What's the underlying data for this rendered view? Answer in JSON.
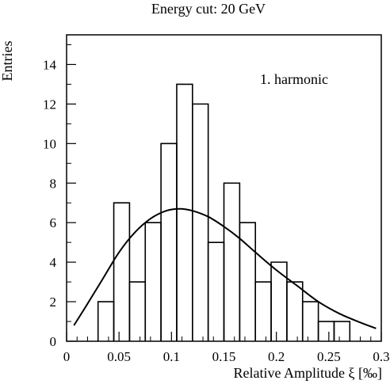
{
  "chart_data": {
    "type": "histogram",
    "title": "Energy cut: 20 GeV",
    "xlabel": "Relative Amplitude ξ [‰]",
    "ylabel": "Entries",
    "annotation": "1. harmonic",
    "xlim": [
      0,
      0.3
    ],
    "ylim": [
      0,
      15.5
    ],
    "xticks": [
      0,
      0.05,
      0.1,
      0.15,
      0.2,
      0.25,
      0.3
    ],
    "xtick_labels": [
      "0",
      "0.05",
      "0.1",
      "0.15",
      "0.2",
      "0.25",
      "0.3"
    ],
    "yticks": [
      0,
      2,
      4,
      6,
      8,
      10,
      12,
      14
    ],
    "ytick_labels": [
      "0",
      "2",
      "4",
      "6",
      "8",
      "10",
      "12",
      "14"
    ],
    "bin_edges": [
      0.03,
      0.045,
      0.06,
      0.075,
      0.09,
      0.105,
      0.12,
      0.135,
      0.15,
      0.165,
      0.18,
      0.195,
      0.21,
      0.225,
      0.24,
      0.255,
      0.27
    ],
    "counts": [
      2,
      7,
      3,
      6,
      10,
      13,
      12,
      5,
      8,
      6,
      3,
      4,
      3,
      2,
      1,
      1
    ],
    "fit_curve": {
      "x": [
        0.007,
        0.02,
        0.035,
        0.05,
        0.065,
        0.08,
        0.095,
        0.108,
        0.12,
        0.135,
        0.15,
        0.165,
        0.18,
        0.2,
        0.22,
        0.24,
        0.26,
        0.28,
        0.295
      ],
      "y": [
        0.8,
        1.9,
        3.2,
        4.5,
        5.5,
        6.2,
        6.6,
        6.7,
        6.6,
        6.3,
        5.8,
        5.2,
        4.5,
        3.6,
        2.8,
        2.0,
        1.4,
        0.95,
        0.65
      ]
    },
    "grid": false
  }
}
